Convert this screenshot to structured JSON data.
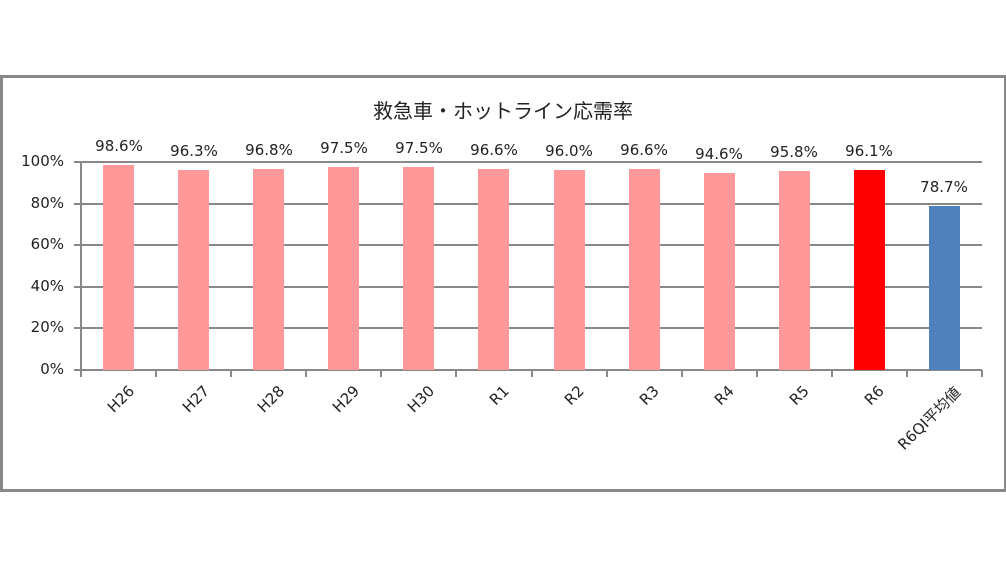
{
  "chart_data": {
    "type": "bar",
    "title": "救急車・ホットライン応需率",
    "xlabel": "",
    "ylabel": "",
    "ylim": [
      0,
      1
    ],
    "yticks": [
      "0%",
      "20%",
      "40%",
      "60%",
      "80%",
      "100%"
    ],
    "grid": true,
    "legend": null,
    "categories": [
      "H26",
      "H27",
      "H28",
      "H29",
      "H30",
      "R1",
      "R2",
      "R3",
      "R4",
      "R5",
      "R6",
      "R6QI平均値"
    ],
    "values": [
      0.986,
      0.963,
      0.968,
      0.975,
      0.975,
      0.966,
      0.96,
      0.966,
      0.946,
      0.958,
      0.961,
      0.787
    ],
    "data_labels": [
      "98.6%",
      "96.3%",
      "96.8%",
      "97.5%",
      "97.5%",
      "96.6%",
      "96.0%",
      "96.6%",
      "94.6%",
      "95.8%",
      "96.1%",
      "78.7%"
    ],
    "bar_colors": [
      "#FF9999",
      "#FF9999",
      "#FF9999",
      "#FF9999",
      "#FF9999",
      "#FF9999",
      "#FF9999",
      "#FF9999",
      "#FF9999",
      "#FF9999",
      "#FF0000",
      "#4F81BD"
    ]
  }
}
